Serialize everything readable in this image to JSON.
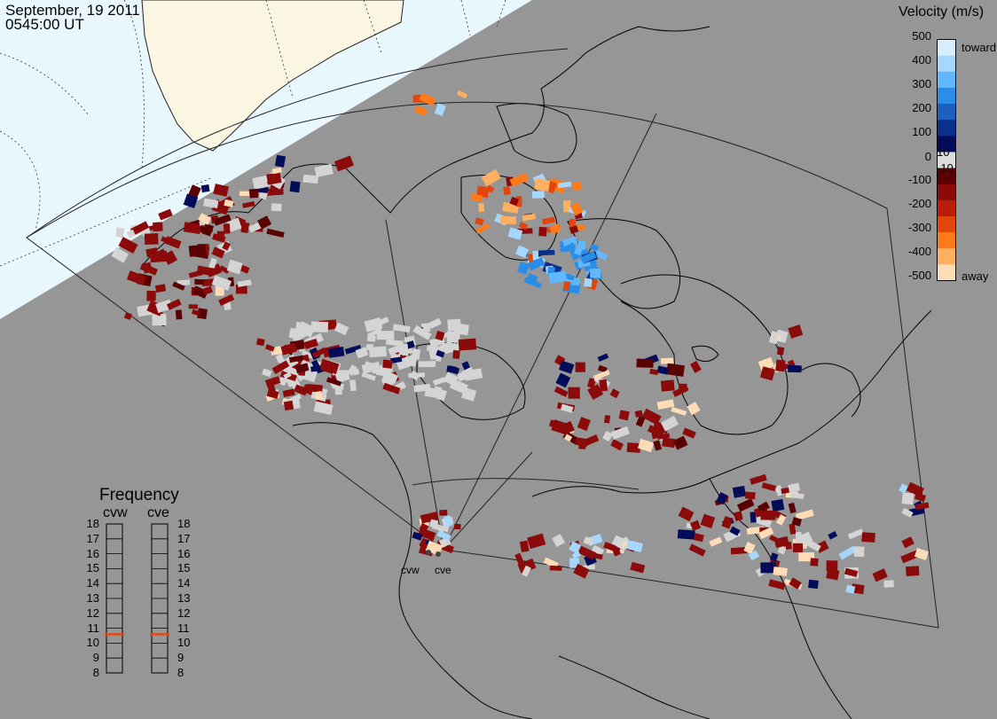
{
  "header": {
    "date": "September, 19 2011",
    "time": "0545:00 UT"
  },
  "colorbar": {
    "title": "Velocity (m/s)",
    "ticks": [
      "500",
      "400",
      "300",
      "200",
      "100",
      "10",
      "0",
      "-10",
      "-100",
      "-200",
      "-300",
      "-400",
      "-500"
    ],
    "toward_label": "toward",
    "away_label": "away",
    "colors": [
      "#d6eeff",
      "#a6d7ff",
      "#62b8ff",
      "#2a8ee9",
      "#1b5fbf",
      "#0b2f8c",
      "#020c58",
      "#dcdcdc",
      "#5a0000",
      "#8b0a0a",
      "#b81e0a",
      "#e2460a",
      "#ff7a18",
      "#ffb060",
      "#ffdcb8"
    ]
  },
  "frequency": {
    "title": "Frequency",
    "radars": [
      "cvw",
      "cve"
    ],
    "levels": [
      "18",
      "17",
      "16",
      "15",
      "14",
      "13",
      "12",
      "11",
      "10",
      "9",
      "8"
    ],
    "selected": {
      "cvw": 10.6,
      "cve": 10.6
    },
    "marker_color": "#e0481a"
  },
  "radar_sites": [
    "cvw",
    "cve"
  ],
  "colors": {
    "background": "#969696",
    "daylight": "#e9f7ff",
    "land_lit": "#faf6e2",
    "ground_scatter": "#d4d4d4"
  }
}
